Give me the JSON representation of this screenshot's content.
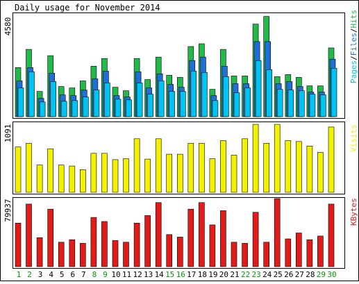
{
  "title": "Daily usage for November 2014",
  "colors": {
    "hits": "#22b84a",
    "files": "#1f6fd6",
    "pages": "#00c4f0",
    "visits": "#f2f200",
    "kbytes": "#e11a1a",
    "weekend_label": "#009900",
    "weekday_label": "#000000",
    "panel_border": "#000000",
    "background": "#ffffff"
  },
  "chart_data": [
    {
      "type": "bar",
      "name": "pages-files-hits",
      "max_label": "4580",
      "ymax": 4580,
      "legend": [
        "Pages",
        "/",
        "Files",
        "/",
        "Hits"
      ],
      "categories": [
        "1",
        "2",
        "3",
        "4",
        "5",
        "6",
        "7",
        "8",
        "9",
        "10",
        "11",
        "12",
        "13",
        "14",
        "15",
        "16",
        "17",
        "18",
        "19",
        "20",
        "21",
        "22",
        "23",
        "24",
        "25",
        "26",
        "27",
        "28",
        "29",
        "30"
      ],
      "series": [
        {
          "name": "Hits",
          "values": [
            2188,
            3000,
            1125,
            2719,
            1344,
            1281,
            1594,
            2250,
            2594,
            1313,
            1156,
            2594,
            1656,
            2656,
            1844,
            1750,
            3125,
            3250,
            1219,
            3000,
            1813,
            1813,
            4125,
            4469,
            1781,
            1875,
            1750,
            1375,
            1375,
            3063
          ]
        },
        {
          "name": "Files",
          "values": [
            1594,
            2188,
            813,
            1938,
            969,
            938,
            1188,
            1688,
            2031,
            938,
            875,
            2000,
            1281,
            1906,
            1438,
            1313,
            2500,
            2656,
            938,
            2250,
            1469,
            1469,
            3344,
            3344,
            1469,
            1563,
            1344,
            1094,
            1094,
            2563
          ]
        },
        {
          "name": "Pages",
          "values": [
            1281,
            2000,
            656,
            1563,
            688,
            719,
            875,
            1188,
            1500,
            781,
            750,
            1500,
            1000,
            1594,
            1125,
            1125,
            2031,
            1969,
            719,
            1781,
            1063,
            1281,
            2500,
            2094,
            1219,
            1188,
            1156,
            1000,
            969,
            2156
          ]
        }
      ]
    },
    {
      "type": "bar",
      "name": "visits",
      "max_label": "1091",
      "ymax": 1091,
      "legend": [
        "Visits"
      ],
      "categories": [
        "1",
        "2",
        "3",
        "4",
        "5",
        "6",
        "7",
        "8",
        "9",
        "10",
        "11",
        "12",
        "13",
        "14",
        "15",
        "16",
        "17",
        "18",
        "19",
        "20",
        "21",
        "22",
        "23",
        "24",
        "25",
        "26",
        "27",
        "28",
        "29",
        "30"
      ],
      "series": [
        {
          "name": "Visits",
          "values": [
            728,
            786,
            437,
            699,
            437,
            422,
            364,
            626,
            626,
            524,
            539,
            859,
            533,
            859,
            611,
            611,
            786,
            786,
            539,
            830,
            597,
            859,
            1091,
            786,
            1091,
            830,
            815,
            743,
            641,
            1048
          ]
        }
      ]
    },
    {
      "type": "bar",
      "name": "kbytes",
      "max_label": "79937",
      "ymax": 79937,
      "legend": [
        "KBytes"
      ],
      "categories": [
        "1",
        "2",
        "3",
        "4",
        "5",
        "6",
        "7",
        "8",
        "9",
        "10",
        "11",
        "12",
        "13",
        "14",
        "15",
        "16",
        "17",
        "18",
        "19",
        "20",
        "21",
        "22",
        "23",
        "24",
        "25",
        "26",
        "27",
        "28",
        "29",
        "30"
      ],
      "series": [
        {
          "name": "KBytes",
          "values": [
            51172,
            73470,
            33978,
            67573,
            28720,
            31613,
            27377,
            57853,
            53018,
            30687,
            28721,
            51172,
            60003,
            75327,
            37659,
            34779,
            67573,
            75327,
            48982,
            65784,
            28721,
            27377,
            63884,
            28721,
            80000,
            32650,
            39576,
            31613,
            36003,
            73470
          ]
        }
      ]
    }
  ],
  "x_labels": [
    {
      "text": "1",
      "weekend": true
    },
    {
      "text": "2",
      "weekend": true
    },
    {
      "text": "3",
      "weekend": false
    },
    {
      "text": "4",
      "weekend": false
    },
    {
      "text": "5",
      "weekend": false
    },
    {
      "text": "6",
      "weekend": false
    },
    {
      "text": "7",
      "weekend": false
    },
    {
      "text": "8",
      "weekend": true
    },
    {
      "text": "9",
      "weekend": true
    },
    {
      "text": "10",
      "weekend": false
    },
    {
      "text": "11",
      "weekend": false
    },
    {
      "text": "12",
      "weekend": false
    },
    {
      "text": "13",
      "weekend": false
    },
    {
      "text": "14",
      "weekend": false
    },
    {
      "text": "15",
      "weekend": true
    },
    {
      "text": "16",
      "weekend": true
    },
    {
      "text": "17",
      "weekend": false
    },
    {
      "text": "18",
      "weekend": false
    },
    {
      "text": "19",
      "weekend": false
    },
    {
      "text": "20",
      "weekend": false
    },
    {
      "text": "21",
      "weekend": false
    },
    {
      "text": "22",
      "weekend": true
    },
    {
      "text": "23",
      "weekend": true
    },
    {
      "text": "24",
      "weekend": false
    },
    {
      "text": "25",
      "weekend": false
    },
    {
      "text": "26",
      "weekend": false
    },
    {
      "text": "27",
      "weekend": false
    },
    {
      "text": "28",
      "weekend": false
    },
    {
      "text": "29",
      "weekend": true
    },
    {
      "text": "30",
      "weekend": true
    }
  ]
}
